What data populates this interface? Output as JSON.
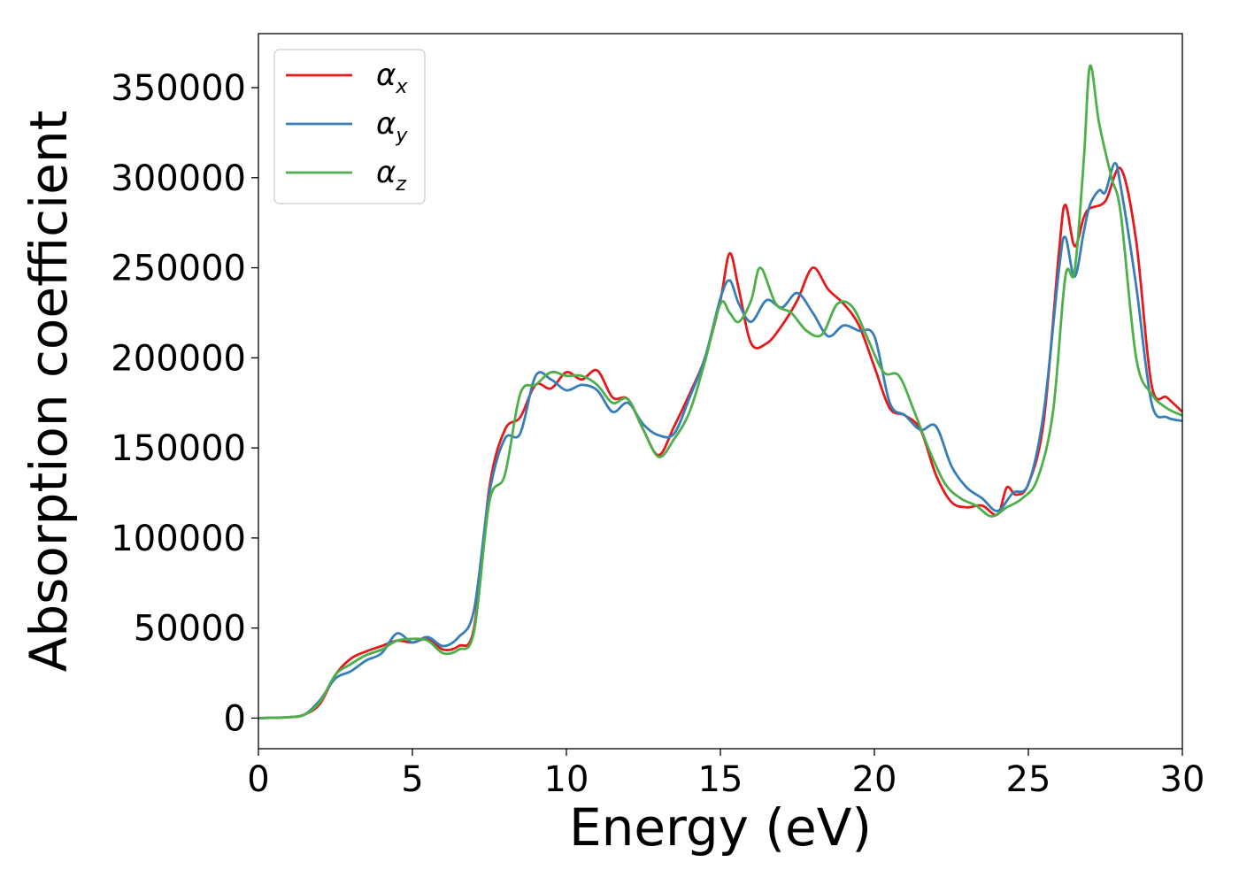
{
  "chart_data": {
    "type": "line",
    "title": "",
    "xlabel": "Energy (eV)",
    "ylabel": "Absorption coefficient",
    "xlim": [
      0,
      30
    ],
    "ylim": [
      -17000,
      380000
    ],
    "xticks": [
      0,
      5,
      10,
      15,
      20,
      25,
      30
    ],
    "yticks": [
      0,
      50000,
      100000,
      150000,
      200000,
      250000,
      300000,
      350000
    ],
    "grid": false,
    "legend_position": "top-left",
    "series": [
      {
        "name": "α",
        "subscript": "x",
        "color": "#e41a1c",
        "x": [
          0,
          1,
          1.5,
          2,
          2.5,
          3,
          3.5,
          4,
          4.5,
          5,
          5.5,
          6,
          6.5,
          7,
          7.5,
          8,
          8.5,
          9,
          9.5,
          10,
          10.5,
          11,
          11.5,
          12,
          12.5,
          13,
          13.5,
          14,
          14.5,
          15,
          15.3,
          15.6,
          16,
          16.5,
          17,
          17.5,
          18,
          18.5,
          19,
          19.5,
          20,
          20.5,
          21,
          21.5,
          22,
          22.5,
          23,
          23.5,
          24,
          24.3,
          24.6,
          25,
          25.5,
          26,
          26.2,
          26.5,
          26.8,
          27,
          27.5,
          28,
          28.5,
          29,
          29.5,
          30
        ],
        "values": [
          0,
          500,
          2000,
          8000,
          24000,
          33000,
          37000,
          40000,
          43000,
          42000,
          44000,
          38000,
          40000,
          50000,
          128000,
          160000,
          167000,
          185000,
          183000,
          192000,
          188000,
          193000,
          178000,
          177000,
          160000,
          146000,
          162000,
          180000,
          200000,
          232000,
          258000,
          238000,
          208000,
          208000,
          218000,
          232000,
          250000,
          238000,
          230000,
          218000,
          195000,
          172000,
          168000,
          160000,
          135000,
          120000,
          117000,
          118000,
          113000,
          128000,
          124000,
          130000,
          165000,
          260000,
          285000,
          262000,
          278000,
          283000,
          287000,
          305000,
          265000,
          185000,
          178000,
          170000
        ]
      },
      {
        "name": "α",
        "subscript": "y",
        "color": "#377eb8",
        "x": [
          0,
          1,
          1.5,
          2,
          2.5,
          3,
          3.5,
          4,
          4.5,
          5,
          5.5,
          6,
          6.5,
          7,
          7.5,
          8,
          8.5,
          9,
          9.5,
          10,
          10.5,
          11,
          11.5,
          12,
          12.5,
          13,
          13.5,
          14,
          14.5,
          15,
          15.3,
          15.6,
          16,
          16.5,
          17,
          17.5,
          18,
          18.5,
          19,
          19.5,
          20,
          20.5,
          21,
          21.5,
          22,
          22.5,
          23,
          23.5,
          24,
          24.5,
          25,
          25.5,
          26,
          26.2,
          26.5,
          26.8,
          27,
          27.3,
          27.5,
          27.8,
          28,
          28.5,
          29,
          29.5,
          30
        ],
        "values": [
          0,
          500,
          2000,
          10000,
          22000,
          26000,
          32000,
          36000,
          47000,
          42000,
          45000,
          40000,
          45000,
          60000,
          125000,
          155000,
          158000,
          190000,
          188000,
          182000,
          185000,
          182000,
          170000,
          175000,
          163000,
          157000,
          158000,
          178000,
          200000,
          233000,
          243000,
          230000,
          220000,
          232000,
          228000,
          236000,
          225000,
          212000,
          218000,
          215000,
          212000,
          175000,
          168000,
          160000,
          162000,
          140000,
          128000,
          122000,
          115000,
          125000,
          130000,
          170000,
          250000,
          267000,
          245000,
          270000,
          285000,
          293000,
          292000,
          308000,
          295000,
          240000,
          175000,
          167000,
          165000
        ]
      },
      {
        "name": "α",
        "subscript": "z",
        "color": "#4daf4a",
        "x": [
          0,
          1,
          1.5,
          2,
          2.5,
          3,
          3.5,
          4,
          4.5,
          5,
          5.5,
          6,
          6.5,
          7,
          7.5,
          8,
          8.5,
          9,
          9.5,
          10,
          10.5,
          11,
          11.5,
          12,
          12.5,
          13,
          13.5,
          14,
          14.5,
          15,
          15.3,
          15.6,
          16,
          16.3,
          16.8,
          17.3,
          17.8,
          18.3,
          18.8,
          19.3,
          19.8,
          20.3,
          20.8,
          21.3,
          21.8,
          22.3,
          22.8,
          23.3,
          23.8,
          24.3,
          24.8,
          25.3,
          25.8,
          26.2,
          26.5,
          26.8,
          27,
          27.3,
          27.7,
          28,
          28.5,
          29,
          29.5,
          30
        ],
        "values": [
          0,
          500,
          2000,
          9000,
          24000,
          30000,
          35000,
          38000,
          43000,
          44000,
          43000,
          36000,
          38000,
          48000,
          120000,
          135000,
          180000,
          185000,
          192000,
          190000,
          190000,
          185000,
          175000,
          177000,
          160000,
          145000,
          155000,
          170000,
          198000,
          230000,
          225000,
          220000,
          232000,
          250000,
          230000,
          225000,
          215000,
          213000,
          230000,
          228000,
          210000,
          192000,
          190000,
          170000,
          148000,
          130000,
          122000,
          118000,
          112000,
          117000,
          122000,
          133000,
          170000,
          245000,
          248000,
          310000,
          362000,
          330000,
          300000,
          280000,
          200000,
          180000,
          172000,
          168000
        ]
      }
    ]
  }
}
